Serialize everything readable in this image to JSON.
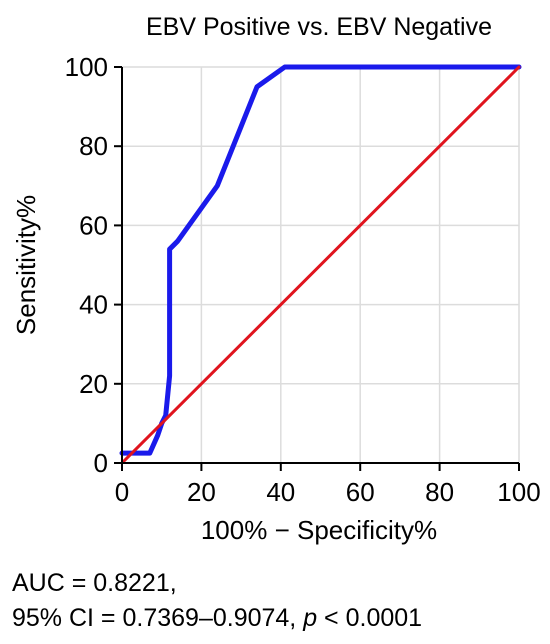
{
  "chart_data": {
    "type": "line",
    "title": "EBV Positive vs. EBV Negative",
    "xlabel": "100% − Specificity%",
    "ylabel": "Sensitivity%",
    "xlim": [
      0,
      100
    ],
    "ylim": [
      0,
      100
    ],
    "x_ticks": [
      "0",
      "20",
      "40",
      "60",
      "80",
      "100"
    ],
    "y_ticks": [
      "0",
      "20",
      "40",
      "60",
      "80",
      "100"
    ],
    "grid": true,
    "series": [
      {
        "color": "#1a1aeb",
        "x": [
          0,
          7,
          9,
          10,
          11,
          12,
          12,
          12,
          14,
          24,
          28,
          34,
          41,
          100
        ],
        "y": [
          2.5,
          2.5,
          7,
          10,
          12,
          22,
          53,
          54,
          56,
          70,
          80,
          95,
          100,
          100
        ]
      },
      {
        "color": "#e0141e",
        "x": [
          0,
          100
        ],
        "y": [
          0,
          100
        ]
      }
    ]
  },
  "stats": {
    "auc": "AUC = 0.8221,",
    "ci": "95% CI = 0.7369–0.9074, ",
    "p_symbol": "p",
    "p_value": " < 0.0001"
  }
}
